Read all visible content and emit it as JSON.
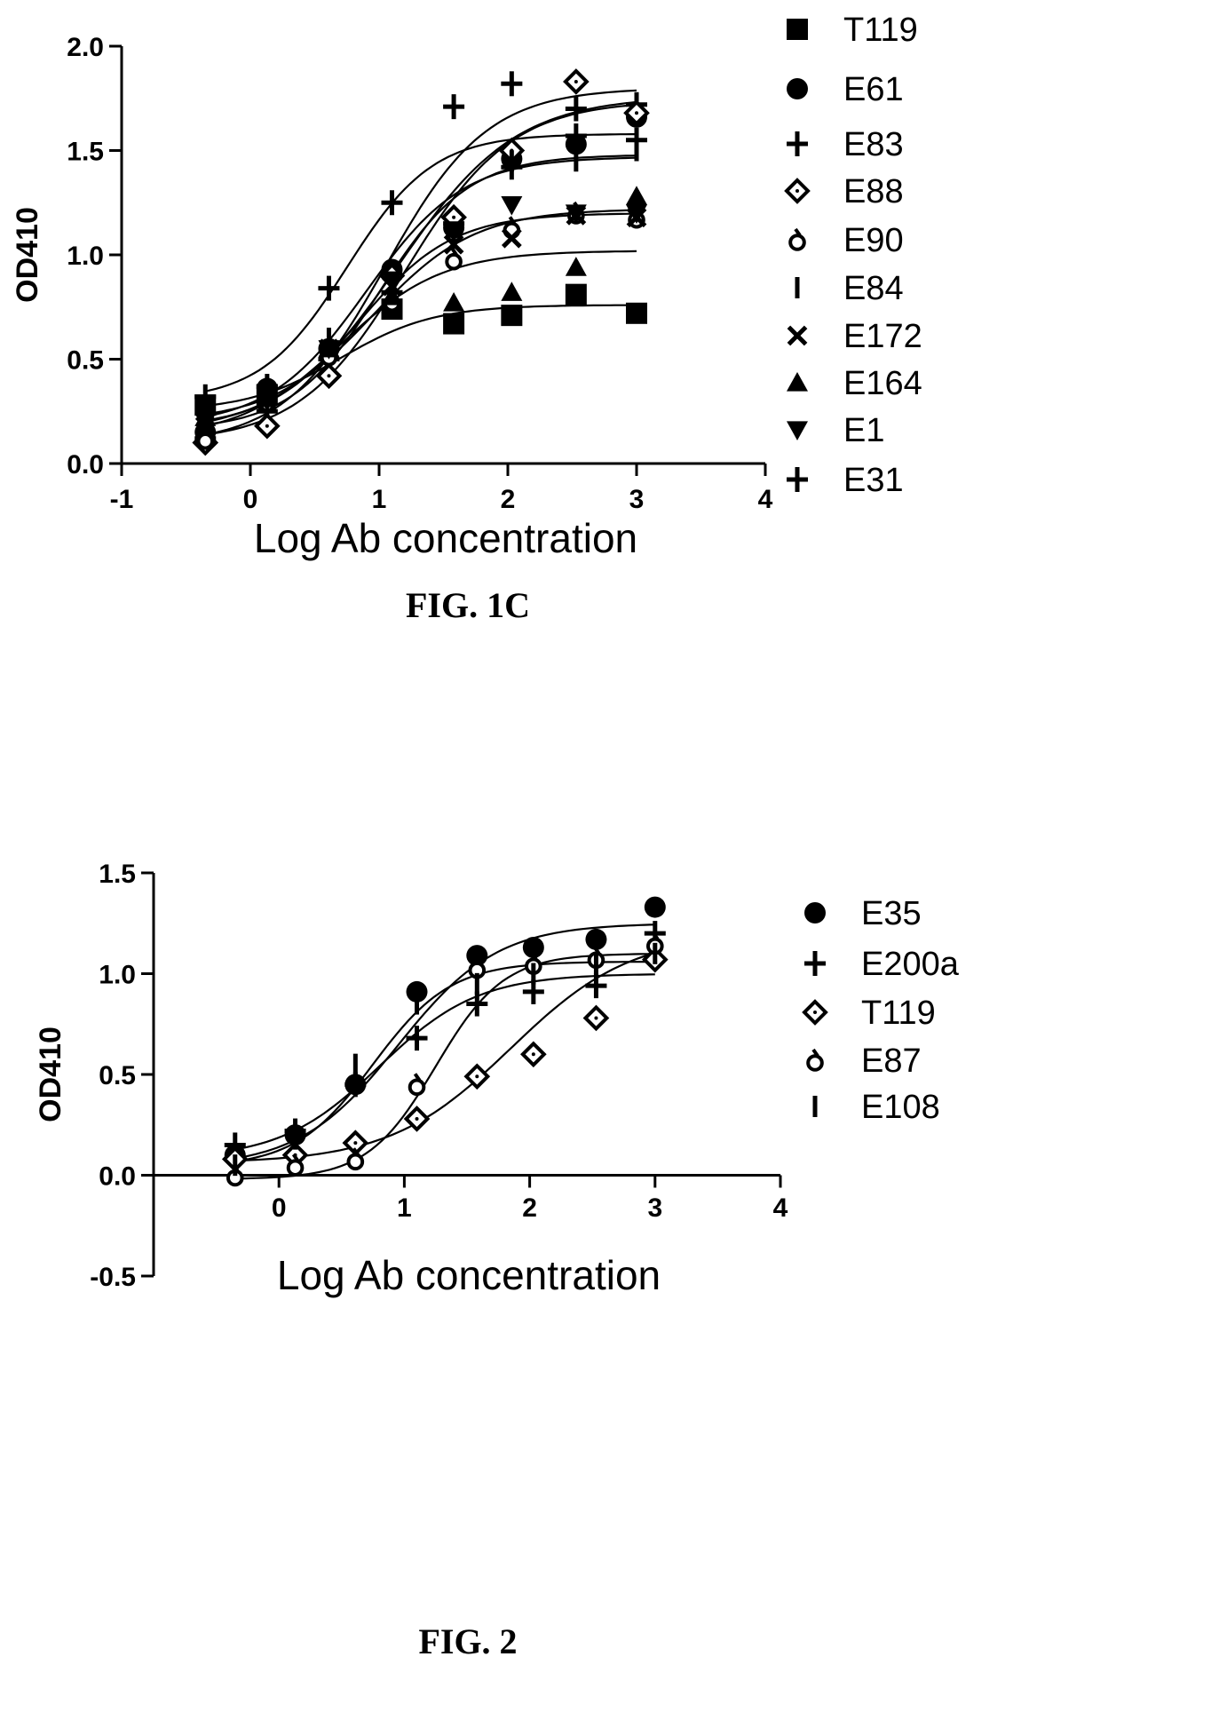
{
  "chart_data": [
    {
      "type": "scatter",
      "caption": "FIG. 1C",
      "xlabel": "Log Ab concentration",
      "ylabel": "OD410",
      "xlim": [
        -1,
        4
      ],
      "ylim": [
        0.0,
        2.0
      ],
      "xticks": [
        -1,
        0,
        1,
        2,
        3,
        4
      ],
      "yticks": [
        0.0,
        0.5,
        1.0,
        1.5,
        2.0
      ],
      "xtick_labels": [
        "-1",
        "0",
        "1",
        "2",
        "3",
        "4"
      ],
      "ytick_labels": [
        "0.0",
        "0.5",
        "1.0",
        "1.5",
        "2.0"
      ],
      "legend_position": "right",
      "series": [
        {
          "name": "T119",
          "marker": "square",
          "x": [
            -0.35,
            0.13,
            1.1,
            1.58,
            2.03,
            2.53,
            3.0
          ],
          "y": [
            0.28,
            0.33,
            0.74,
            0.67,
            0.71,
            0.81,
            0.72
          ],
          "fit": {
            "bottom": 0.25,
            "top": 0.76,
            "logec50": 0.7,
            "hill": 1.2
          }
        },
        {
          "name": "E61",
          "marker": "circle",
          "x": [
            -0.35,
            0.13,
            0.61,
            1.1,
            1.58,
            2.03,
            2.53,
            3.0
          ],
          "y": [
            0.15,
            0.36,
            0.55,
            0.93,
            1.13,
            1.46,
            1.53,
            1.66
          ],
          "fit": {
            "bottom": 0.14,
            "top": 1.76,
            "logec50": 1.15,
            "hill": 0.95
          }
        },
        {
          "name": "E83",
          "marker": "plus",
          "x": [
            -0.35,
            0.13,
            0.61,
            1.1,
            1.58,
            2.03,
            2.53,
            3.0
          ],
          "y": [
            0.12,
            0.25,
            0.5,
            0.82,
            1.15,
            1.42,
            1.7,
            1.72
          ],
          "fit": {
            "bottom": 0.1,
            "top": 1.74,
            "logec50": 1.2,
            "hill": 1.05
          }
        },
        {
          "name": "E88",
          "marker": "diamond",
          "x": [
            -0.35,
            0.13,
            0.61,
            1.1,
            1.58,
            2.03,
            2.53,
            3.0
          ],
          "y": [
            0.1,
            0.18,
            0.42,
            0.9,
            1.18,
            1.5,
            1.83,
            1.68
          ],
          "fit": {
            "bottom": 0.09,
            "top": 1.8,
            "logec50": 1.05,
            "hill": 1.1
          }
        },
        {
          "name": "E90",
          "marker": "circle-open-tick",
          "x": [
            -0.35,
            0.13,
            0.61,
            1.1,
            1.58,
            2.03,
            2.53,
            3.0
          ],
          "y": [
            0.12,
            0.3,
            0.52,
            0.78,
            0.98,
            1.13,
            1.2,
            1.18
          ],
          "fit": {
            "bottom": 0.12,
            "top": 1.02,
            "logec50": 0.7,
            "hill": 1.1
          }
        },
        {
          "name": "E84",
          "marker": "bar",
          "x": [
            -0.35,
            0.13,
            0.61,
            1.1,
            1.58,
            2.03,
            2.53,
            3.0
          ],
          "y": [
            0.2,
            0.32,
            0.6,
            0.85,
            1.08,
            1.45,
            1.45,
            1.5
          ],
          "fit": {
            "bottom": 0.18,
            "top": 1.47,
            "logec50": 0.9,
            "hill": 1.15
          }
        },
        {
          "name": "E172",
          "marker": "x",
          "x": [
            -0.35,
            0.13,
            0.61,
            1.1,
            1.58,
            2.03,
            2.53,
            3.0
          ],
          "y": [
            0.18,
            0.3,
            0.55,
            0.85,
            1.05,
            1.08,
            1.19,
            1.18
          ],
          "fit": {
            "bottom": 0.17,
            "top": 1.2,
            "logec50": 0.85,
            "hill": 1.2
          }
        },
        {
          "name": "E164",
          "marker": "triangle-up",
          "x": [
            -0.35,
            0.13,
            0.61,
            1.1,
            1.58,
            2.03,
            2.53,
            3.0
          ],
          "y": [
            0.22,
            0.32,
            0.55,
            0.8,
            0.77,
            0.82,
            0.94,
            1.28
          ],
          "fit": {
            "bottom": 0.2,
            "top": 1.22,
            "logec50": 0.95,
            "hill": 1.1
          }
        },
        {
          "name": "E1",
          "marker": "triangle-down",
          "x": [
            -0.35,
            0.13,
            0.61,
            1.1,
            1.58,
            2.03,
            2.53,
            3.0
          ],
          "y": [
            0.2,
            0.3,
            0.55,
            0.88,
            1.12,
            1.24,
            1.2,
            1.2
          ],
          "fit": {
            "bottom": 0.16,
            "top": 1.48,
            "logec50": 1.0,
            "hill": 1.25
          }
        },
        {
          "name": "E31",
          "marker": "plus",
          "x": [
            -0.35,
            0.13,
            0.61,
            1.1,
            1.58,
            2.03,
            2.53,
            3.0
          ],
          "y": [
            0.32,
            0.37,
            0.84,
            1.25,
            1.71,
            1.82,
            1.57,
            1.55
          ],
          "fit": {
            "bottom": 0.3,
            "top": 1.58,
            "logec50": 0.75,
            "hill": 1.3
          }
        }
      ]
    },
    {
      "type": "scatter",
      "caption": "FIG. 2",
      "xlabel": "Log Ab concentration",
      "ylabel": "OD410",
      "xlim": [
        -1,
        4
      ],
      "ylim": [
        -0.5,
        1.5
      ],
      "xticks": [
        0,
        1,
        2,
        3,
        4
      ],
      "yticks": [
        -0.5,
        0.0,
        0.5,
        1.0,
        1.5
      ],
      "xtick_labels": [
        "0",
        "1",
        "2",
        "3",
        "4"
      ],
      "ytick_labels": [
        "-0.5",
        "0.0",
        "0.5",
        "1.0",
        "1.5"
      ],
      "legend_position": "right",
      "series": [
        {
          "name": "E35",
          "marker": "circle",
          "x": [
            -0.35,
            0.13,
            0.61,
            1.1,
            1.58,
            2.03,
            2.53,
            3.0
          ],
          "y": [
            0.1,
            0.2,
            0.45,
            0.91,
            1.09,
            1.13,
            1.17,
            1.33
          ],
          "fit": {
            "bottom": 0.04,
            "top": 1.25,
            "logec50": 0.95,
            "hill": 1.1
          }
        },
        {
          "name": "E200a",
          "marker": "plus",
          "x": [
            -0.35,
            0.13,
            0.61,
            1.1,
            1.58,
            2.03,
            2.53,
            3.0
          ],
          "y": [
            0.15,
            0.22,
            0.45,
            0.68,
            0.85,
            0.91,
            0.94,
            1.2
          ],
          "fit": {
            "bottom": 0.08,
            "top": 1.0,
            "logec50": 0.8,
            "hill": 1.1
          }
        },
        {
          "name": "T119",
          "marker": "diamond",
          "x": [
            -0.35,
            0.13,
            0.61,
            1.1,
            1.58,
            2.03,
            2.53,
            3.0
          ],
          "y": [
            0.08,
            0.1,
            0.16,
            0.28,
            0.49,
            0.6,
            0.78,
            1.07
          ],
          "fit": {
            "bottom": 0.06,
            "top": 1.2,
            "logec50": 1.85,
            "hill": 0.9
          }
        },
        {
          "name": "E87",
          "marker": "circle-open-tick",
          "x": [
            -0.35,
            0.13,
            0.61,
            1.1,
            1.58,
            2.03,
            2.53,
            3.0
          ],
          "y": [
            0.0,
            0.05,
            0.08,
            0.45,
            1.03,
            1.05,
            1.08,
            1.15
          ],
          "fit": {
            "bottom": -0.02,
            "top": 1.1,
            "logec50": 1.25,
            "hill": 1.6
          }
        },
        {
          "name": "E108",
          "marker": "bar",
          "x": [
            -0.35,
            0.13,
            0.61,
            1.1,
            1.58,
            2.03,
            2.53,
            3.0
          ],
          "y": [
            0.05,
            0.18,
            0.55,
            0.85,
            0.95,
            1.0,
            1.05,
            1.1
          ],
          "fit": {
            "bottom": 0.04,
            "top": 1.06,
            "logec50": 0.75,
            "hill": 1.4
          }
        }
      ]
    }
  ]
}
